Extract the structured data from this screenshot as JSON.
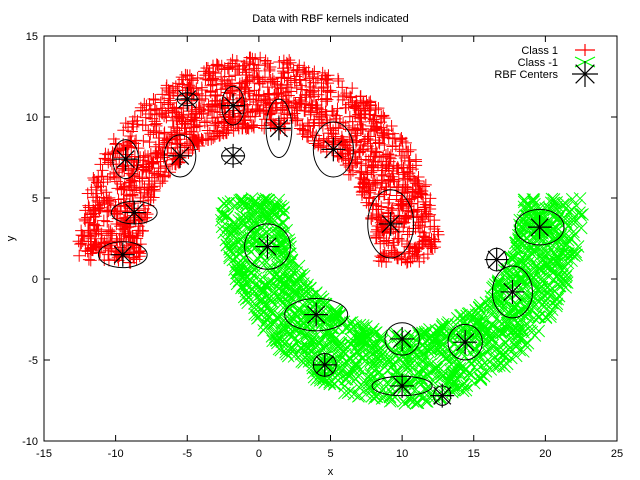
{
  "chart_data": {
    "type": "scatter",
    "title": "Data with RBF kernels indicated",
    "xlabel": "x",
    "ylabel": "y",
    "xlim": [
      -15,
      25
    ],
    "ylim": [
      -10,
      15
    ],
    "xticks": [
      -15,
      -10,
      -5,
      0,
      5,
      10,
      15,
      20,
      25
    ],
    "yticks": [
      -10,
      -5,
      0,
      5,
      10,
      15
    ],
    "grid": false,
    "legend_position": "top-right",
    "colors": {
      "class1": "#ff0000",
      "class_neg1": "#00ff00",
      "centers": "#000000",
      "ellipses": "#000000"
    },
    "series": [
      {
        "name": "Class 1",
        "marker": "plus",
        "color": "#ff0000",
        "distribution": "upper half-moon",
        "arc_center": [
          0,
          1
        ],
        "radius_mean": 10.5,
        "radius_spread": 2.2,
        "angle_range_deg": [
          0,
          180
        ],
        "point_count": 1600
      },
      {
        "name": "Class -1",
        "marker": "cross",
        "color": "#00ff00",
        "distribution": "lower half-moon",
        "arc_center": [
          10,
          5
        ],
        "radius_mean": 10.5,
        "radius_spread": 2.2,
        "angle_range_deg": [
          180,
          360
        ],
        "point_count": 1600
      },
      {
        "name": "RBF Centers",
        "marker": "star",
        "color": "#000000",
        "points": [
          {
            "x": -9.3,
            "y": 7.4,
            "rx": 0.9,
            "ry": 1.2
          },
          {
            "x": -5.5,
            "y": 7.6,
            "rx": 1.1,
            "ry": 1.3
          },
          {
            "x": -5.0,
            "y": 11.1,
            "rx": 0.7,
            "ry": 0.4
          },
          {
            "x": -1.8,
            "y": 10.7,
            "rx": 0.8,
            "ry": 1.2
          },
          {
            "x": -1.8,
            "y": 7.6,
            "rx": 0.8,
            "ry": 0.5
          },
          {
            "x": 1.4,
            "y": 9.3,
            "rx": 0.9,
            "ry": 1.8
          },
          {
            "x": 5.2,
            "y": 8.0,
            "rx": 1.4,
            "ry": 1.7
          },
          {
            "x": -8.7,
            "y": 4.1,
            "rx": 1.6,
            "ry": 0.7
          },
          {
            "x": -9.5,
            "y": 1.5,
            "rx": 1.7,
            "ry": 0.8
          },
          {
            "x": 9.2,
            "y": 3.4,
            "rx": 1.6,
            "ry": 2.1
          },
          {
            "x": 0.6,
            "y": 2.0,
            "rx": 1.6,
            "ry": 1.4
          },
          {
            "x": 4.0,
            "y": -2.2,
            "rx": 2.2,
            "ry": 1.0
          },
          {
            "x": 4.6,
            "y": -5.3,
            "rx": 0.8,
            "ry": 0.7
          },
          {
            "x": 10.0,
            "y": -3.7,
            "rx": 1.2,
            "ry": 1.0
          },
          {
            "x": 14.4,
            "y": -3.9,
            "rx": 1.2,
            "ry": 1.1
          },
          {
            "x": 10.0,
            "y": -6.6,
            "rx": 2.1,
            "ry": 0.6
          },
          {
            "x": 12.8,
            "y": -7.2,
            "rx": 0.6,
            "ry": 0.6
          },
          {
            "x": 16.6,
            "y": 1.2,
            "rx": 0.7,
            "ry": 0.7
          },
          {
            "x": 17.7,
            "y": -0.8,
            "rx": 1.4,
            "ry": 1.6
          },
          {
            "x": 19.6,
            "y": 3.2,
            "rx": 1.7,
            "ry": 1.1
          }
        ]
      }
    ]
  }
}
